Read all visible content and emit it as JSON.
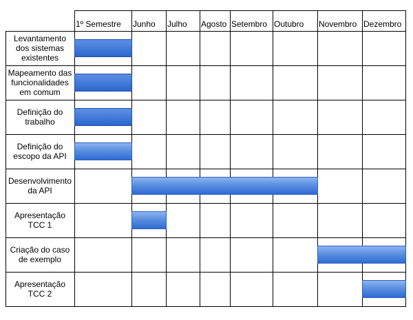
{
  "months": [
    "1º Semestre",
    "Junho",
    "Julho",
    "Agosto",
    "Setembro",
    "Outubro",
    "Novembro",
    "Dezembro"
  ],
  "tasks": [
    {
      "label": "Levantamento dos sistemas existentes",
      "start": 0,
      "end": 1,
      "style": "solid"
    },
    {
      "label": "Mapeamento das funcionalidades em comum",
      "start": 0,
      "end": 1,
      "style": "solid"
    },
    {
      "label": "Definição do trabalho",
      "start": 0,
      "end": 1,
      "style": "solid"
    },
    {
      "label": "Definição do escopo da API",
      "start": 0,
      "end": 1,
      "style": "gradient"
    },
    {
      "label": "Desenvolvimento da API",
      "start": 1,
      "end": 6,
      "style": "gradient"
    },
    {
      "label": "Apresentação TCC 1",
      "start": 1,
      "end": 2,
      "style": "gradient"
    },
    {
      "label": "Criação do caso de exemplo",
      "start": 6,
      "end": 8,
      "style": "gradient"
    },
    {
      "label": "Apresentação TCC 2",
      "start": 7,
      "end": 8,
      "style": "gradient"
    }
  ],
  "colors": {
    "bar": "#3f78d8",
    "bar_border": "#2a5fbf",
    "grid": "#000000"
  }
}
